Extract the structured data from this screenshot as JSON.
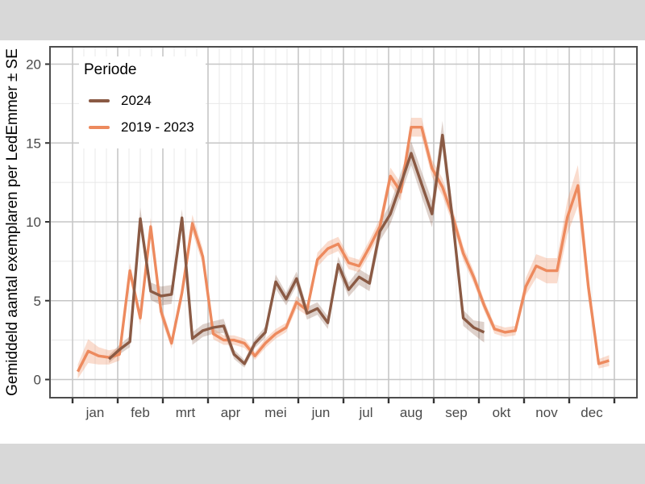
{
  "figure": {
    "y_axis_title": "Gemiddeld aantal exemplaren per LedEmmer ± SE",
    "y_tick_labels": [
      "0",
      "5",
      "10",
      "15",
      "20"
    ],
    "x_month_labels": [
      "jan",
      "feb",
      "mrt",
      "apr",
      "mei",
      "jun",
      "jul",
      "aug",
      "sep",
      "okt",
      "nov",
      "dec"
    ],
    "legend": {
      "title": "Periode",
      "items": [
        {
          "label": "2024"
        },
        {
          "label": "2019 - 2023"
        }
      ]
    },
    "colors": {
      "series_2024": "#8a5a44",
      "series_2019_2023": "#ed8a5e",
      "ribbon_2024": "rgba(138,90,68,0.28)",
      "ribbon_2019_2023": "rgba(237,138,94,0.30)",
      "grid_major": "#c6c6c6",
      "grid_minor": "#e8e8e8",
      "panel_border": "#4d4d4d",
      "tick": "#333333",
      "tick_label": "#4a4a4a",
      "outer_background": "#d8d8d8",
      "figure_background": "#ffffff"
    }
  },
  "chart_data": {
    "type": "line",
    "title": "",
    "xlabel": "",
    "ylabel": "Gemiddeld aantal exemplaren per LedEmmer ± SE",
    "x_unit": "week_of_year",
    "months": [
      "jan",
      "feb",
      "mrt",
      "apr",
      "mei",
      "jun",
      "jul",
      "aug",
      "sep",
      "okt",
      "nov",
      "dec"
    ],
    "ylim": [
      0,
      20
    ],
    "y_ticks": [
      0,
      5,
      10,
      15,
      20
    ],
    "grid": true,
    "legend_title": "Periode",
    "legend_position": "inside-top-left",
    "ribbon_meaning": "value ± SE",
    "series": [
      {
        "name": "2024",
        "points_week_value_se": [
          [
            4,
            1.3,
            0.25
          ],
          [
            5,
            1.9,
            0.3
          ],
          [
            6,
            2.4,
            0.35
          ],
          [
            7,
            10.2,
            0.7
          ],
          [
            8,
            5.6,
            0.55
          ],
          [
            9,
            5.3,
            0.6
          ],
          [
            10,
            5.4,
            0.6
          ],
          [
            11,
            10.25,
            0.55
          ],
          [
            12,
            2.6,
            0.4
          ],
          [
            13,
            3.1,
            0.4
          ],
          [
            14,
            3.3,
            0.4
          ],
          [
            15,
            3.4,
            0.45
          ],
          [
            16,
            1.6,
            0.3
          ],
          [
            17,
            1.0,
            0.25
          ],
          [
            18,
            2.3,
            0.3
          ],
          [
            19,
            3.0,
            0.35
          ],
          [
            20,
            6.2,
            0.45
          ],
          [
            21,
            5.1,
            0.4
          ],
          [
            22,
            6.4,
            0.45
          ],
          [
            23,
            4.2,
            0.4
          ],
          [
            24,
            4.5,
            0.4
          ],
          [
            25,
            3.6,
            0.4
          ],
          [
            26,
            7.3,
            0.5
          ],
          [
            27,
            5.7,
            0.45
          ],
          [
            28,
            6.5,
            0.5
          ],
          [
            29,
            6.1,
            0.5
          ],
          [
            30,
            9.4,
            0.6
          ],
          [
            31,
            10.5,
            0.65
          ],
          [
            32,
            12.4,
            0.7
          ],
          [
            33,
            14.35,
            0.75
          ],
          [
            34,
            12.4,
            0.8
          ],
          [
            35,
            10.5,
            0.85
          ],
          [
            36,
            15.5,
            0.9
          ],
          [
            37,
            10.0,
            0.7
          ],
          [
            38,
            3.9,
            0.5
          ],
          [
            39,
            3.3,
            0.45
          ],
          [
            40,
            3.0,
            0.65
          ]
        ]
      },
      {
        "name": "2019 - 2023",
        "points_week_value_se": [
          [
            1,
            0.5,
            0.45
          ],
          [
            2,
            1.8,
            0.75
          ],
          [
            3,
            1.5,
            0.55
          ],
          [
            4,
            1.4,
            0.45
          ],
          [
            5,
            1.6,
            0.4
          ],
          [
            6,
            6.9,
            0.5
          ],
          [
            7,
            3.9,
            0.45
          ],
          [
            8,
            9.7,
            0.55
          ],
          [
            9,
            4.3,
            0.45
          ],
          [
            10,
            2.3,
            0.35
          ],
          [
            11,
            5.5,
            0.5
          ],
          [
            12,
            9.9,
            0.55
          ],
          [
            13,
            7.8,
            0.5
          ],
          [
            14,
            2.9,
            0.35
          ],
          [
            15,
            2.5,
            0.3
          ],
          [
            16,
            2.5,
            0.3
          ],
          [
            17,
            2.3,
            0.3
          ],
          [
            18,
            1.5,
            0.25
          ],
          [
            19,
            2.3,
            0.3
          ],
          [
            20,
            2.9,
            0.3
          ],
          [
            21,
            3.3,
            0.3
          ],
          [
            22,
            4.9,
            0.4
          ],
          [
            23,
            4.4,
            0.35
          ],
          [
            24,
            7.6,
            0.45
          ],
          [
            25,
            8.3,
            0.45
          ],
          [
            26,
            8.6,
            0.45
          ],
          [
            27,
            7.4,
            0.4
          ],
          [
            28,
            7.2,
            0.4
          ],
          [
            29,
            8.4,
            0.45
          ],
          [
            30,
            9.7,
            0.5
          ],
          [
            31,
            12.9,
            0.55
          ],
          [
            32,
            11.9,
            0.55
          ],
          [
            33,
            16.0,
            0.6
          ],
          [
            34,
            16.0,
            0.6
          ],
          [
            35,
            13.4,
            0.55
          ],
          [
            36,
            12.2,
            0.55
          ],
          [
            37,
            10.3,
            0.5
          ],
          [
            38,
            8.0,
            0.45
          ],
          [
            39,
            6.5,
            0.4
          ],
          [
            40,
            4.7,
            0.35
          ],
          [
            41,
            3.2,
            0.3
          ],
          [
            42,
            3.0,
            0.3
          ],
          [
            43,
            3.1,
            0.3
          ],
          [
            44,
            5.9,
            0.55
          ],
          [
            45,
            7.2,
            0.75
          ],
          [
            46,
            6.9,
            0.8
          ],
          [
            47,
            6.9,
            0.8
          ],
          [
            48,
            10.3,
            1.1
          ],
          [
            49,
            12.3,
            1.3
          ],
          [
            50,
            5.9,
            0.8
          ],
          [
            51,
            1.0,
            0.3
          ],
          [
            52,
            1.2,
            0.35
          ]
        ]
      }
    ]
  }
}
